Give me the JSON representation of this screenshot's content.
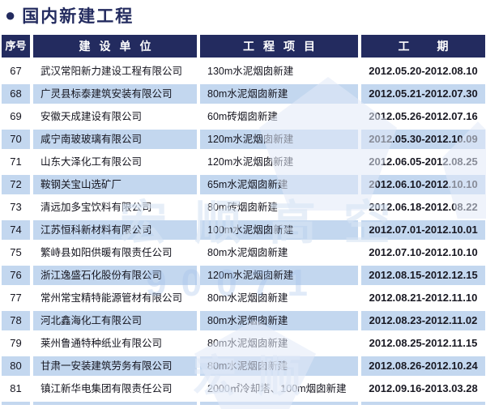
{
  "page": {
    "bullet": "●",
    "title": "国内新建工程"
  },
  "colors": {
    "header_navy": "#232b5f",
    "stripe_blue": "#c3d7ef",
    "row_text": "#15151f",
    "header_text": "#ffffff"
  },
  "table": {
    "columns": [
      {
        "label": "序号"
      },
      {
        "label": "建设单位"
      },
      {
        "label": "工程项目"
      },
      {
        "label": "工期"
      }
    ],
    "rows": [
      {
        "no": "67",
        "company": "武汉常阳新力建设工程有限公司",
        "project": "130m水泥烟囱新建",
        "period": "2012.05.20-2012.08.10"
      },
      {
        "no": "68",
        "company": "广灵县标泰建筑安装有限公司",
        "project": "80m水泥烟囱新建",
        "period": "2012.05.21-2012.07.30"
      },
      {
        "no": "69",
        "company": "安徽天成建设有限公司",
        "project": "60m砖烟囱新建",
        "period": "2012.05.26-2012.07.16"
      },
      {
        "no": "70",
        "company": "咸宁南玻玻璃有限公司",
        "project": "120m水泥烟囱新建",
        "period": "2012.05.30-2012.10.09"
      },
      {
        "no": "71",
        "company": "山东大泽化工有限公司",
        "project": "120m水泥烟囱新建",
        "period": "2012.06.05-2012.08.25"
      },
      {
        "no": "72",
        "company": "鞍钢关宝山选矿厂",
        "project": "65m水泥烟囱新建",
        "period": "2012.06.10-2012.10.10"
      },
      {
        "no": "73",
        "company": "清远加多宝饮料有限公司",
        "project": "80m砖烟囱新建",
        "period": "2012.06.18-2012.08.22"
      },
      {
        "no": "74",
        "company": "江苏恒科新材料有限公司",
        "project": "100m水泥烟囱新建",
        "period": "2012.07.01-2012.10.01"
      },
      {
        "no": "75",
        "company": "繁峙县如阳供暖有限责任公司",
        "project": "80m水泥烟囱新建",
        "period": "2012.07.10-2012.10.10"
      },
      {
        "no": "76",
        "company": "浙江逸盛石化股份有限公司",
        "project": "120m水泥烟囱新建",
        "period": "2012.08.15-2012.12.15"
      },
      {
        "no": "77",
        "company": "常州常宝精特能源管材有限公司",
        "project": "80m水泥烟囱新建",
        "period": "2012.08.21-2012.11.10"
      },
      {
        "no": "78",
        "company": "河北鑫海化工有限公司",
        "project": "80m水泥烟囱新建",
        "period": "2012.08.23-2012.11.02"
      },
      {
        "no": "79",
        "company": "莱州鲁通特种纸业有限公司",
        "project": "80m水泥烟囱新建",
        "period": "2012.08.25-2012.11.15"
      },
      {
        "no": "80",
        "company": "甘肃一安装建筑劳务有限公司",
        "project": "80m水泥烟囱新建",
        "period": "2012.08.26-2012.10.24"
      },
      {
        "no": "81",
        "company": "镇江新华电集团有限责任公司",
        "project": "2000㎡冷却塔、100m烟囱新建",
        "period": "2012.09.16-2013.03.28"
      }
    ]
  },
  "watermark": {
    "brand_text": "宏顺高空",
    "brand_text_partial": "宏顺",
    "digits_text": "90071"
  }
}
